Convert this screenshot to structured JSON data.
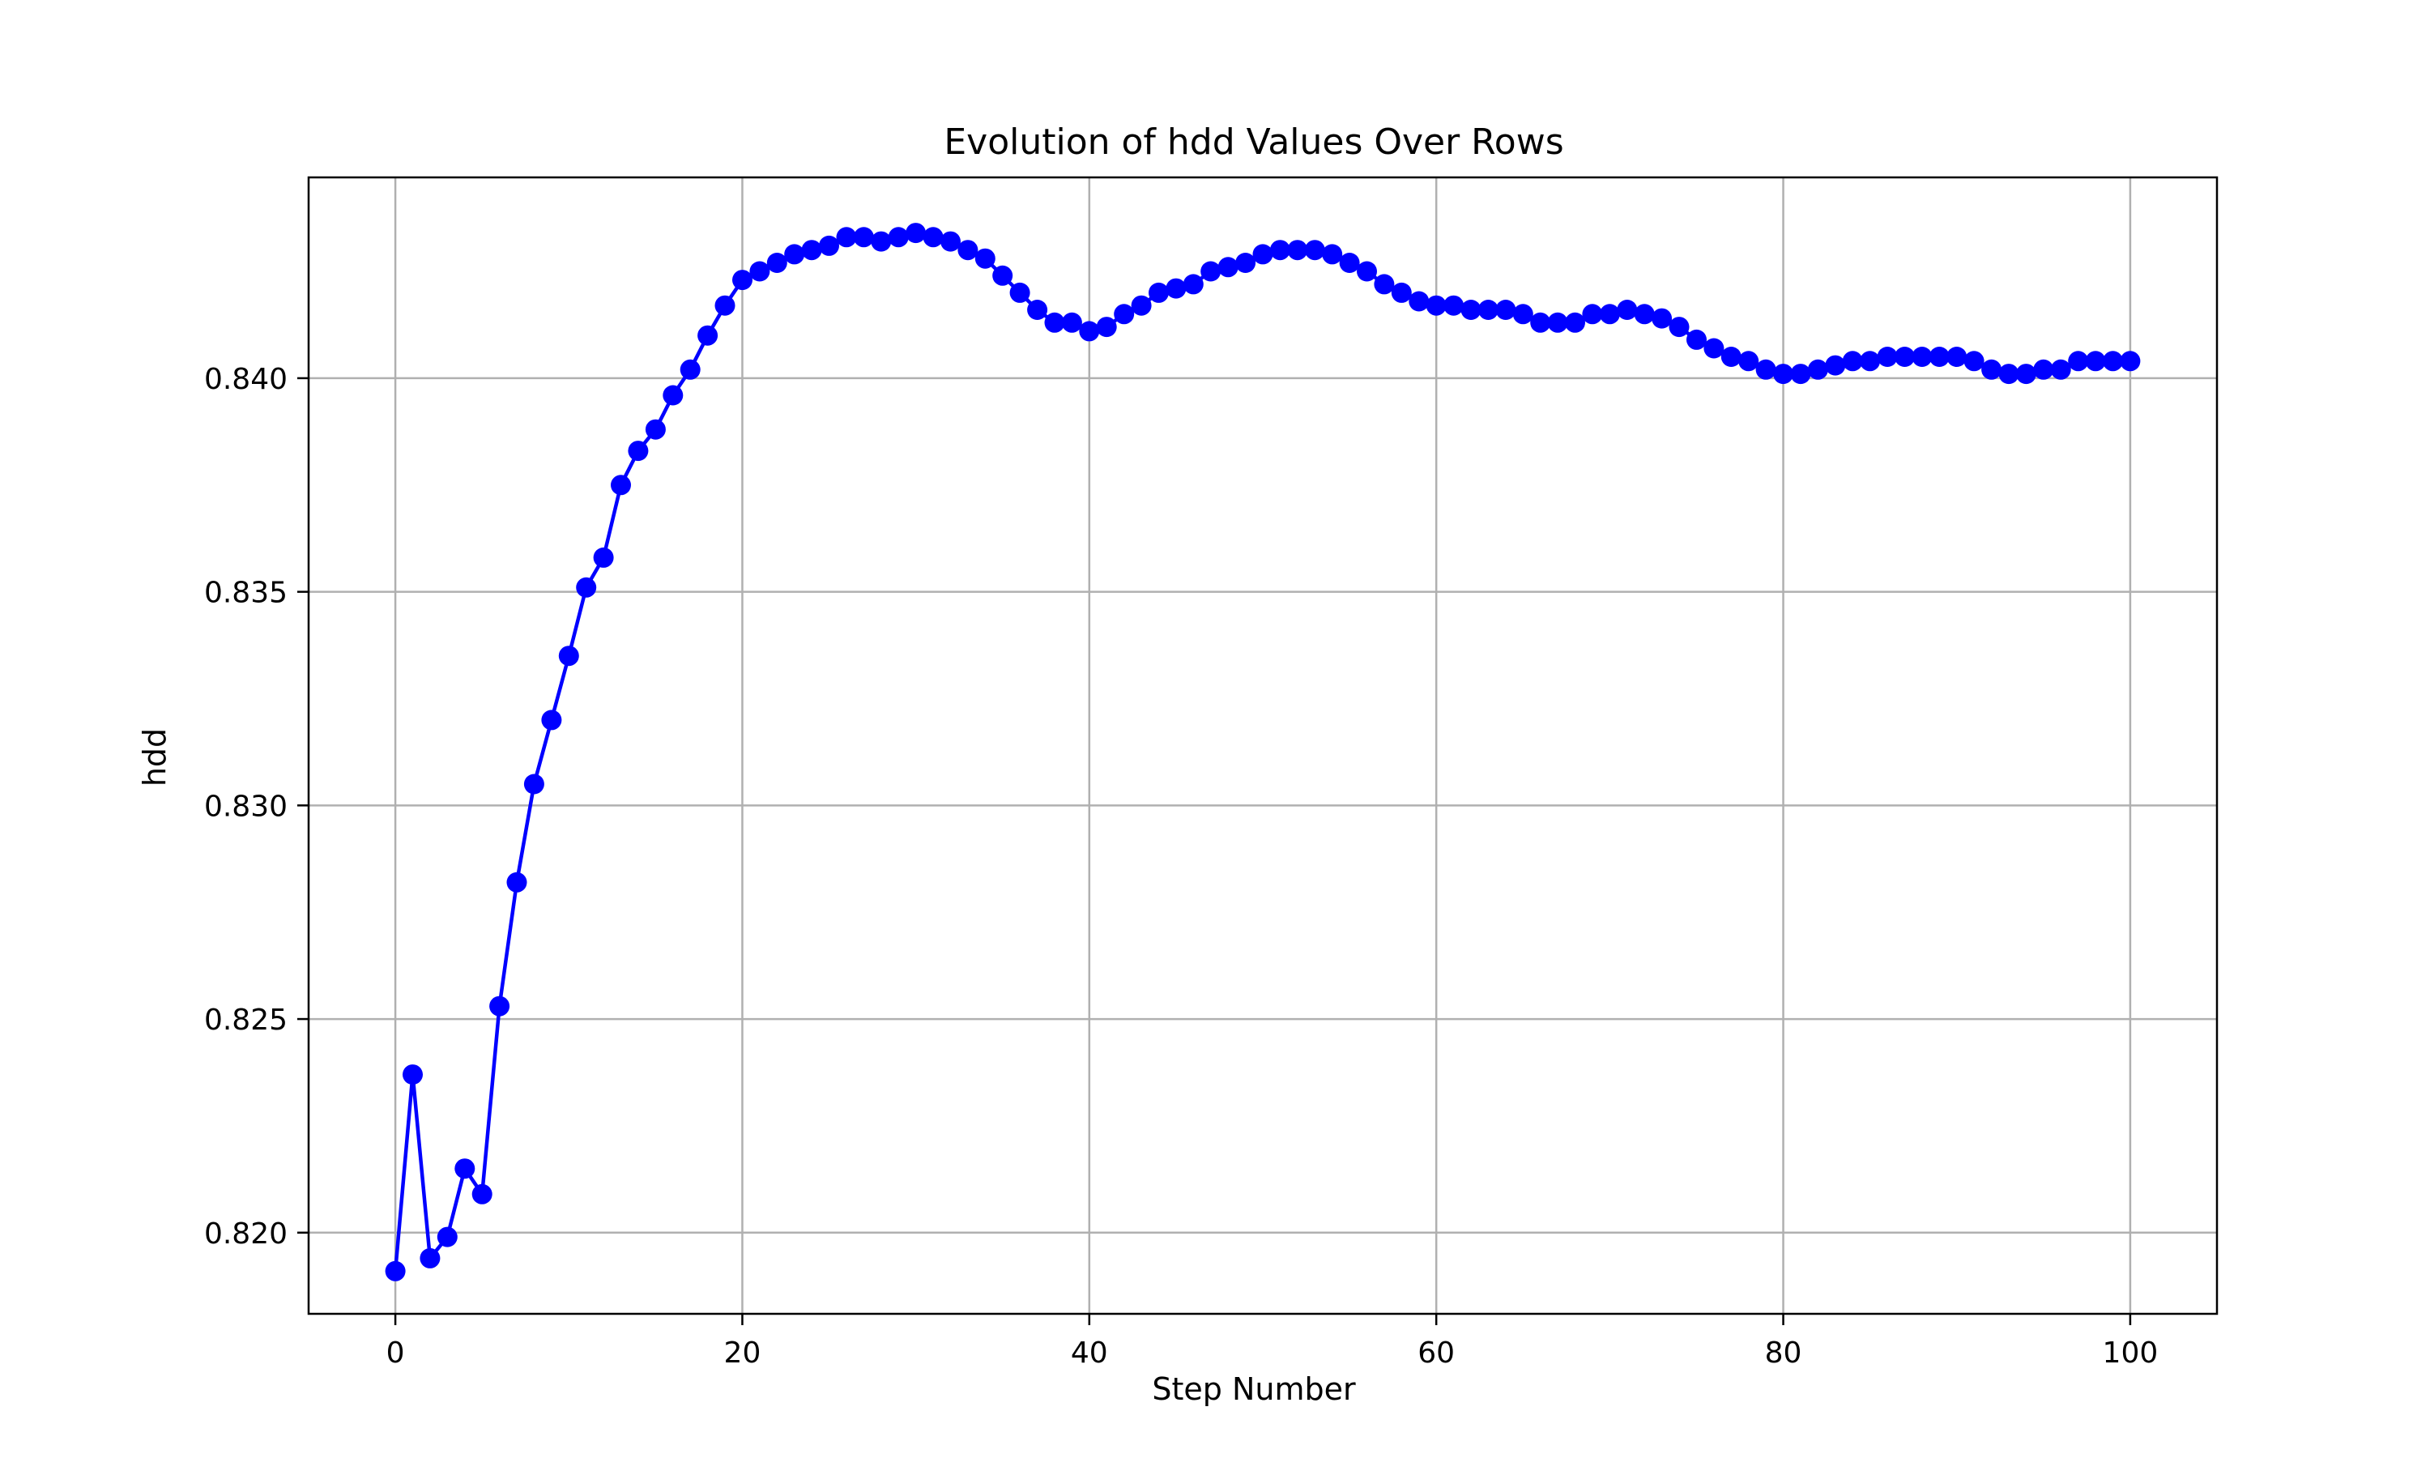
{
  "chart_data": {
    "type": "line",
    "title": "Evolution of hdd Values Over Rows",
    "xlabel": "Step Number",
    "ylabel": "hdd",
    "xlim": [
      -5,
      105
    ],
    "ylim": [
      0.8181,
      0.8447
    ],
    "xticks": [
      0,
      20,
      40,
      60,
      80,
      100
    ],
    "yticks": [
      0.82,
      0.825,
      0.83,
      0.835,
      0.84
    ],
    "ytick_labels": [
      "0.820",
      "0.825",
      "0.830",
      "0.835",
      "0.840"
    ],
    "grid": true,
    "color": "#0000ff",
    "marker": "circle",
    "series": [
      {
        "x": [
          0,
          1,
          2,
          3,
          4,
          5,
          6,
          7,
          8,
          9,
          10,
          11,
          12,
          13,
          14,
          15,
          16,
          17,
          18,
          19,
          20,
          21,
          22,
          23,
          24,
          25,
          26,
          27,
          28,
          29,
          30,
          31,
          32,
          33,
          34,
          35,
          36,
          37,
          38,
          39,
          40,
          41,
          42,
          43,
          44,
          45,
          46,
          47,
          48,
          49,
          50,
          51,
          52,
          53,
          54,
          55,
          56,
          57,
          58,
          59,
          60,
          61,
          62,
          63,
          64,
          65,
          66,
          67,
          68,
          69,
          70,
          71,
          72,
          73,
          74,
          75,
          76,
          77,
          78,
          79,
          80,
          81,
          82,
          83,
          84,
          85,
          86,
          87,
          88,
          89,
          90,
          91,
          92,
          93,
          94,
          95,
          96,
          97,
          98,
          99,
          100
        ],
        "y": [
          0.8191,
          0.8237,
          0.8194,
          0.8199,
          0.8215,
          0.8209,
          0.8253,
          0.8282,
          0.8305,
          0.832,
          0.8335,
          0.8351,
          0.8358,
          0.8375,
          0.8383,
          0.8388,
          0.8396,
          0.8402,
          0.841,
          0.8417,
          0.8423,
          0.8425,
          0.8427,
          0.8429,
          0.843,
          0.8431,
          0.8433,
          0.8433,
          0.8432,
          0.8433,
          0.8434,
          0.8433,
          0.8432,
          0.843,
          0.8428,
          0.8424,
          0.842,
          0.8416,
          0.8413,
          0.8413,
          0.8411,
          0.8412,
          0.8415,
          0.8417,
          0.842,
          0.8421,
          0.8422,
          0.8425,
          0.8426,
          0.8427,
          0.8429,
          0.843,
          0.843,
          0.843,
          0.8429,
          0.8427,
          0.8425,
          0.8422,
          0.842,
          0.8418,
          0.8417,
          0.8417,
          0.8416,
          0.8416,
          0.8416,
          0.8415,
          0.8413,
          0.8413,
          0.8413,
          0.8415,
          0.8415,
          0.8416,
          0.8415,
          0.8414,
          0.8412,
          0.8409,
          0.8407,
          0.8405,
          0.8404,
          0.8402,
          0.8401,
          0.8401,
          0.8402,
          0.8403,
          0.8404,
          0.8404,
          0.8405,
          0.8405,
          0.8405,
          0.8405,
          0.8405,
          0.8404,
          0.8402,
          0.8401,
          0.8401,
          0.8402,
          0.8402,
          0.8404,
          0.8404,
          0.8404,
          0.8404
        ]
      }
    ]
  }
}
